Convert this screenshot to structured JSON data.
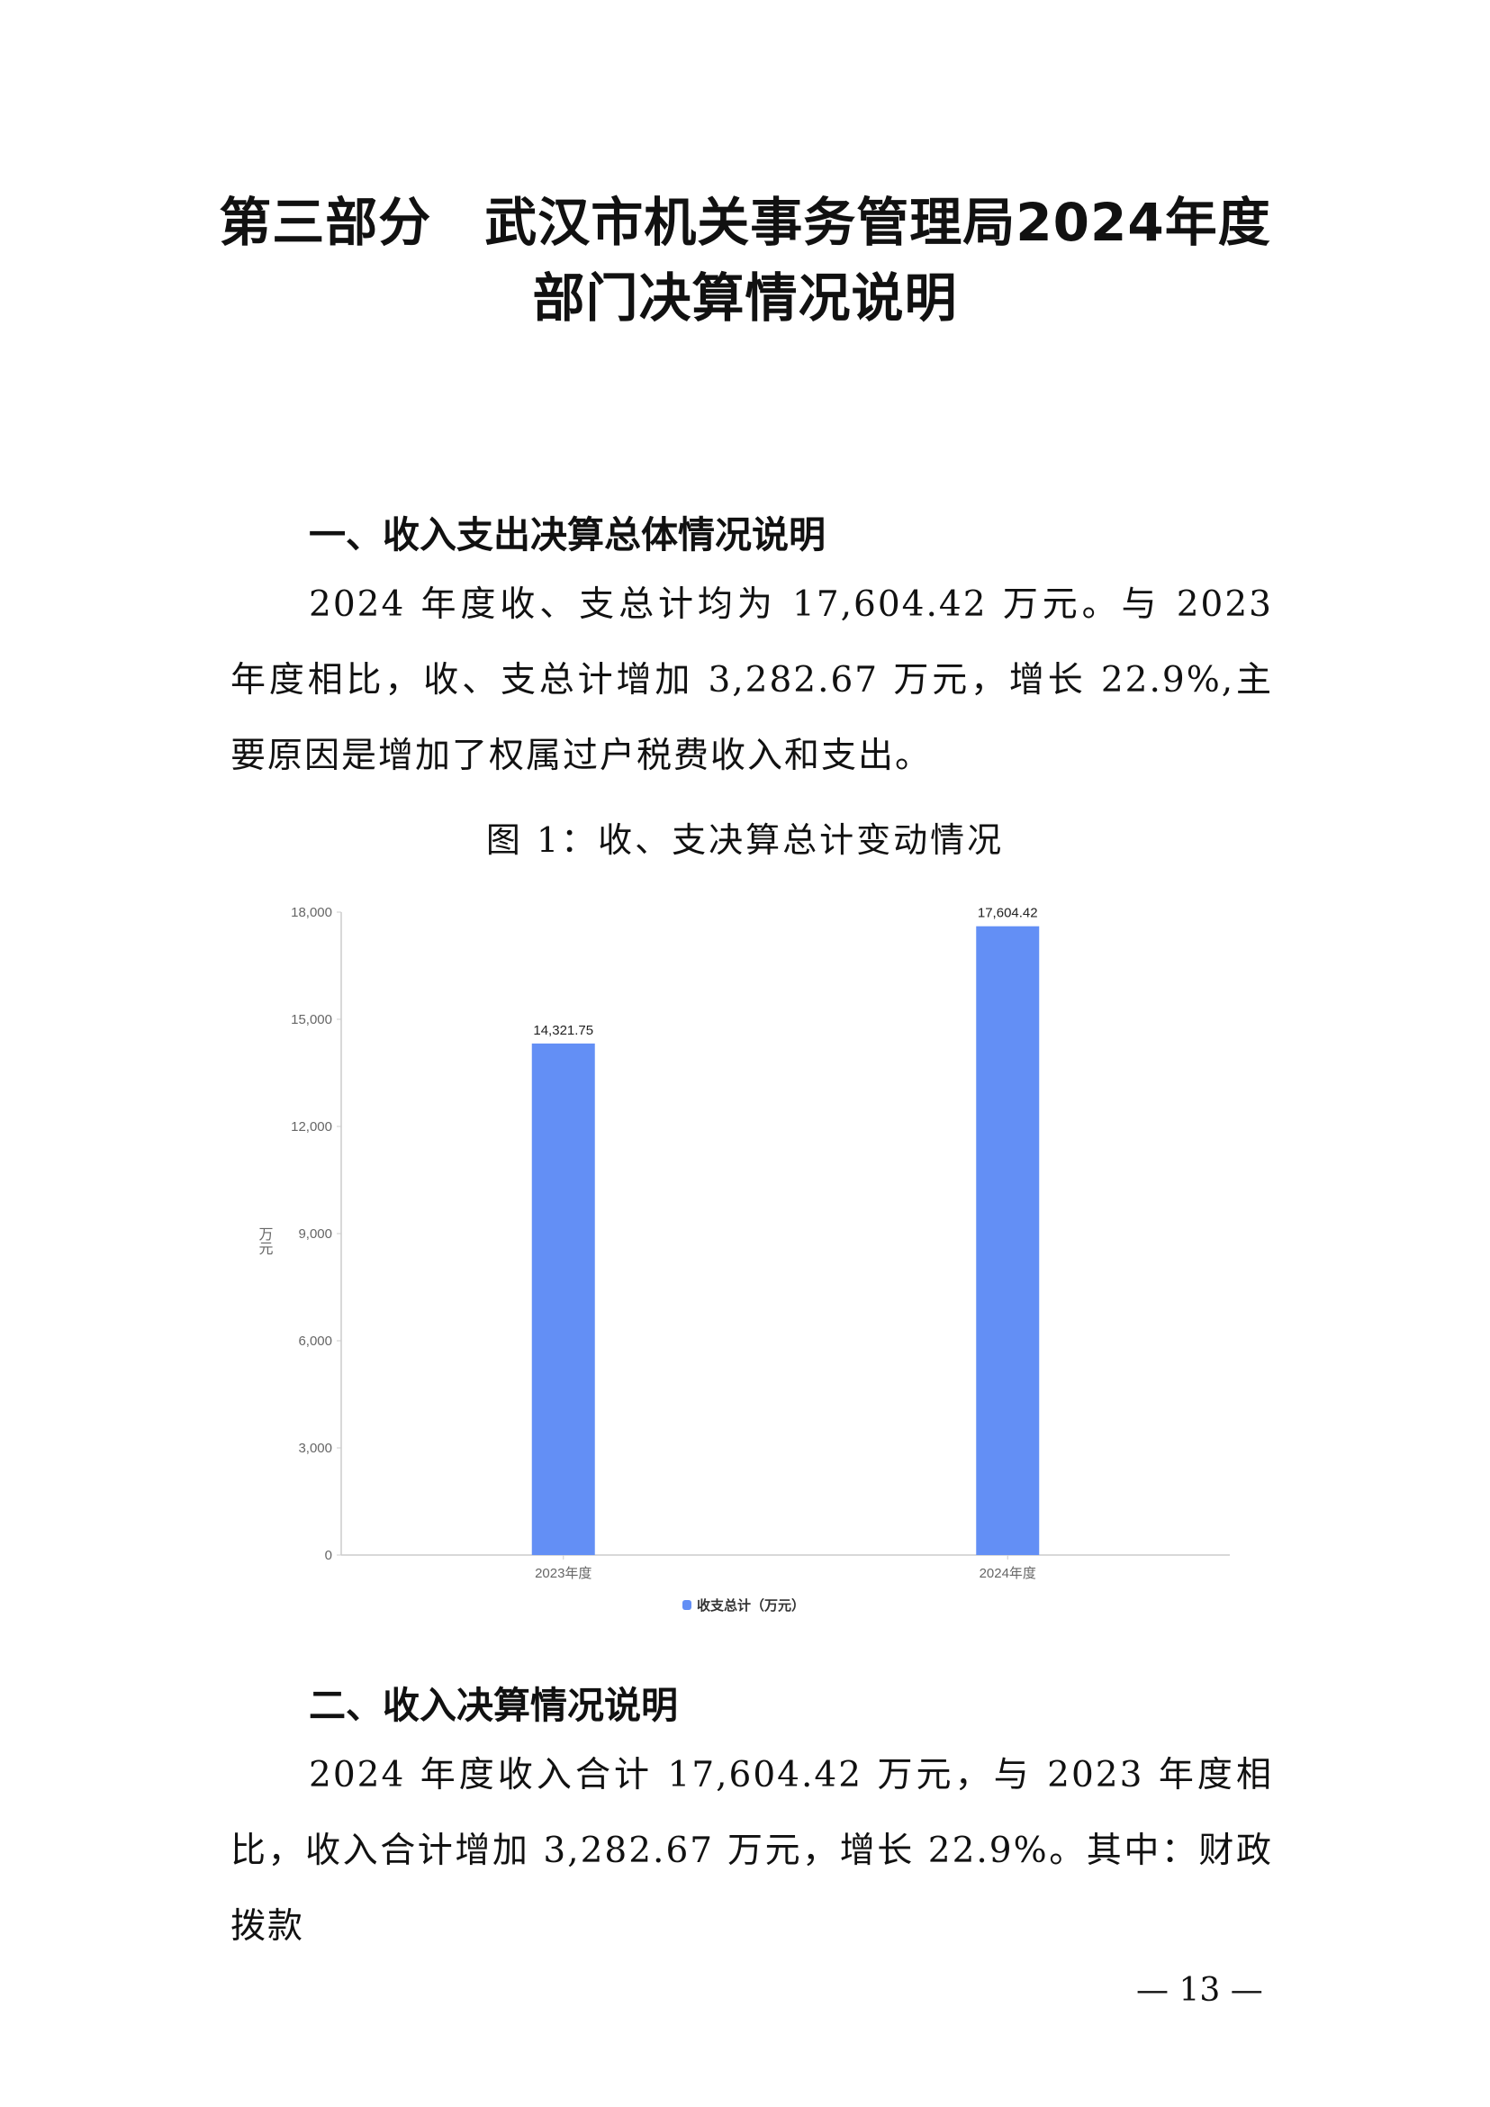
{
  "title": "第三部分　武汉市机关事务管理局2024年度部门决算情况说明",
  "section1": {
    "heading": "一、收入支出决算总体情况说明",
    "text": "2024 年度收、支总计均为 17,604.42 万元。与 2023 年度相比，收、支总计增加 3,282.67 万元，增长 22.9%,主要原因是增加了权属过户税费收入和支出。"
  },
  "figure_caption": "图 1：收、支决算总计变动情况",
  "chart_data": {
    "type": "bar",
    "title": "",
    "xlabel": "",
    "ylabel": "万元",
    "categories": [
      "2023年度",
      "2024年度"
    ],
    "series": [
      {
        "name": "收支总计（万元）",
        "values": [
          14321.75,
          17604.42
        ],
        "labels": [
          "14,321.75",
          "17,604.42"
        ],
        "color": "#638ff5"
      }
    ],
    "ylim": [
      0,
      18000
    ],
    "yticks": [
      "0",
      "3,000",
      "6,000",
      "9,000",
      "12,000",
      "15,000",
      "18,000"
    ],
    "grid": false,
    "legend": "bottom"
  },
  "section2": {
    "heading": "二、收入决算情况说明",
    "text": "2024 年度收入合计 17,604.42 万元，与 2023 年度相比，收入合计增加 3,282.67 万元，增长 22.9%。其中：财政拨款"
  },
  "page_number": "— 13 —"
}
